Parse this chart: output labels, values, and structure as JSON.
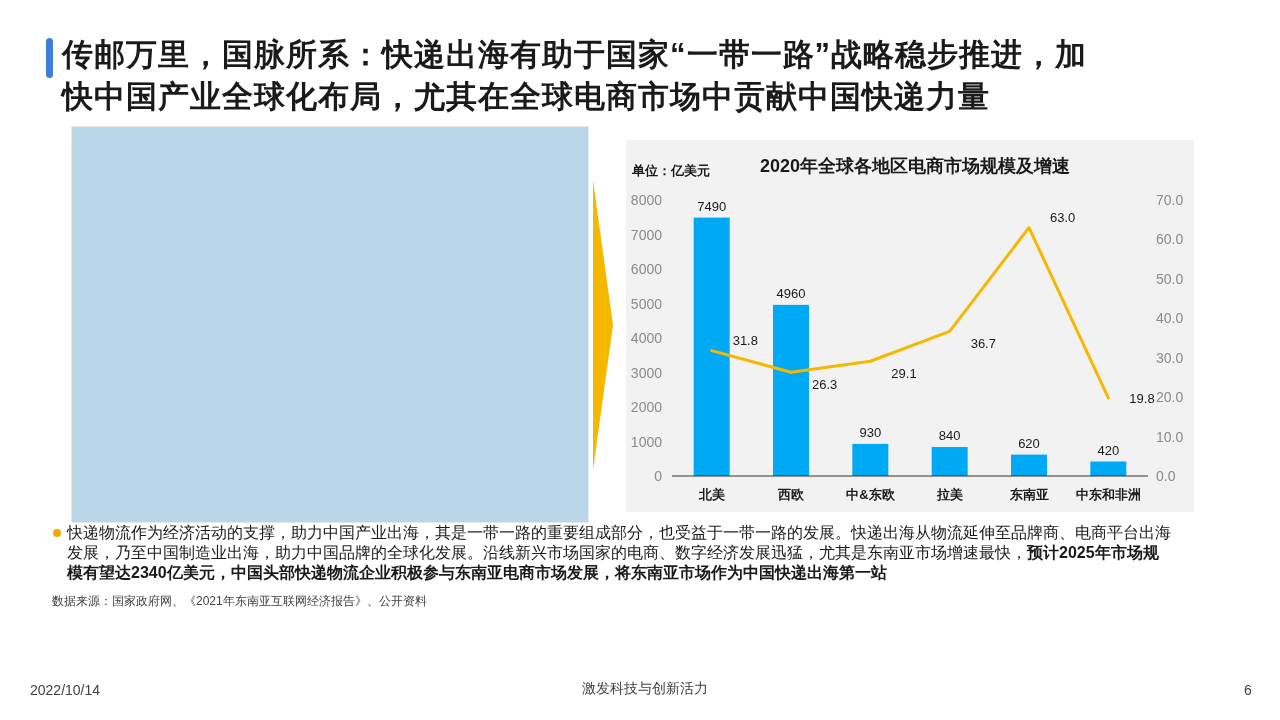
{
  "chart_data": {
    "type": "bar",
    "title": "2020年全球各地区电商市场规模及增速",
    "ylabel": "单位：亿美元",
    "categories": [
      "北美",
      "西欧",
      "中&东欧",
      "拉美",
      "东南亚",
      "中东和非洲"
    ],
    "series": [
      {
        "color": "#00a9f4",
        "values": [
          7490,
          4960,
          930,
          840,
          620,
          420
        ],
        "value_labels": [
          "7490",
          "4960",
          "930",
          "840",
          "620",
          "420"
        ]
      },
      {
        "type": "line",
        "axis": "y2",
        "color": "#f5b800",
        "values": [
          31.8,
          26.3,
          29.1,
          36.7,
          63.0,
          19.8
        ],
        "value_labels": [
          "31.8",
          "26.3",
          "29.1",
          "36.7",
          "63.0",
          "19.8"
        ]
      }
    ],
    "ylim": [
      0,
      8000
    ],
    "yticks": [
      0,
      1000,
      2000,
      3000,
      4000,
      5000,
      6000,
      7000,
      8000
    ],
    "y2lim": [
      0,
      70
    ],
    "y2ticks": [
      {
        "value": 0,
        "label": "0.0"
      },
      {
        "value": 10,
        "label": "10.0"
      },
      {
        "value": 20,
        "label": "20.0"
      },
      {
        "value": 30,
        "label": "30.0"
      },
      {
        "value": 40,
        "label": "40.0"
      },
      {
        "value": 50,
        "label": "50.0"
      },
      {
        "value": 60,
        "label": "60.0"
      },
      {
        "value": 70,
        "label": "70.0"
      }
    ],
    "annotations": [
      "传邮万里，国脉所系：快递出海有助于国家“一带一路”战略稳步推进，加快中国产业全球化布局，尤其在全球电商市场中贡献中国快递力量",
      "快递物流作为经济活动的支撑，助力中国产业出海，其是一带一路的重要组成部分，也受益于一带一路的发展。快递出海从物流延伸至品牌商、电商平台出海发展，乃至中国制造业出海，助力中国品牌的全球化发展。沿线新兴市场国家的电商、数字经济发展迅猛，尤其是东南亚市场增速最快，**预计2025年市场规模有望达2340亿美元，中国头部快递物流企业积极参与东南亚电商市场发展，将东南亚市场作为中国快递出海第一站**",
      "数据来源：国家政府网、《2021年东南亚互联网经济报告》、公开资料",
      "2022/10/14",
      "激发科技与创新活力",
      "6"
    ]
  }
}
